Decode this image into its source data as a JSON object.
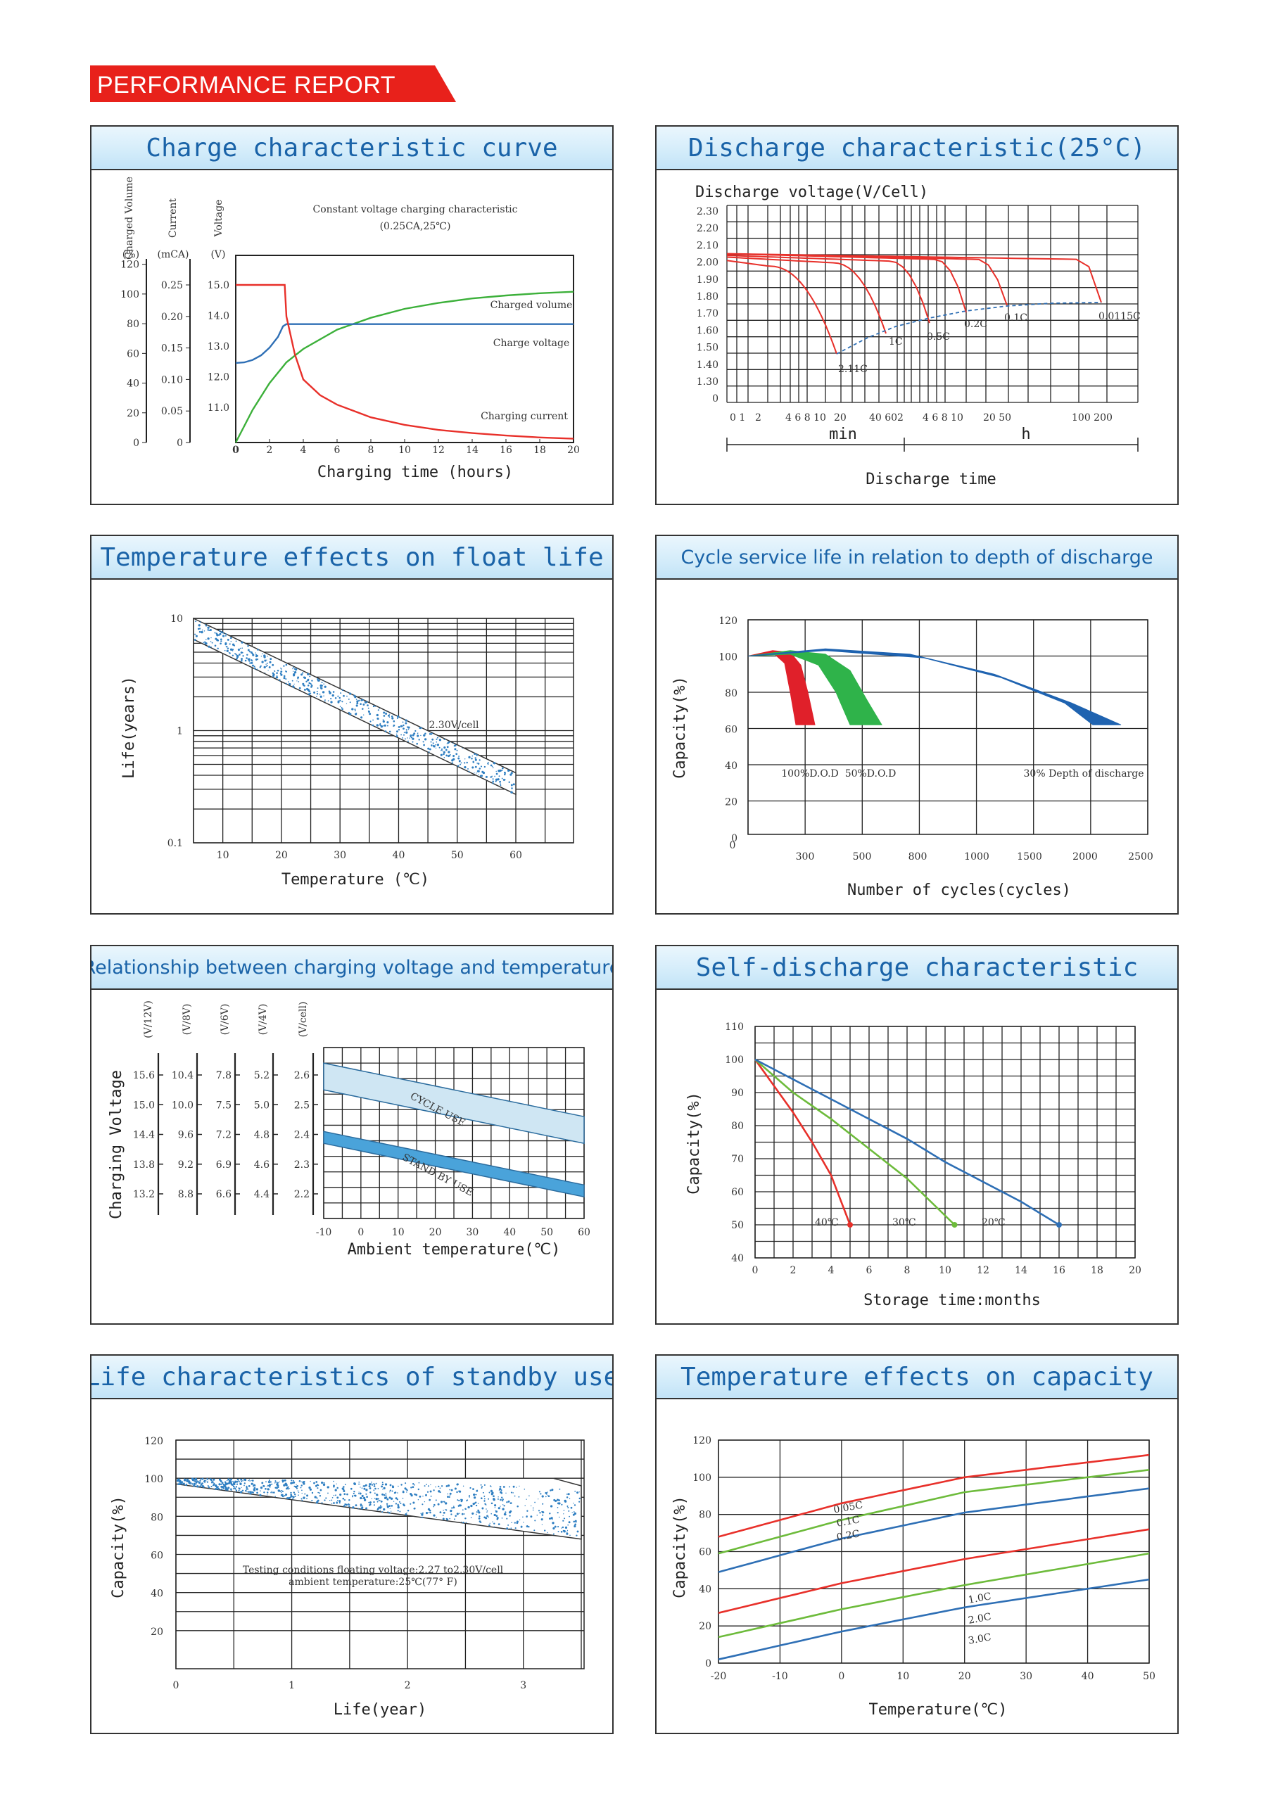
{
  "header": {
    "title": "PERFORMANCE REPORT",
    "color": "#e8211b"
  },
  "panels": [
    {
      "id": "charge",
      "title": "Charge characteristic curve"
    },
    {
      "id": "discharge",
      "title": "Discharge characteristic(25°C)"
    },
    {
      "id": "float",
      "title": "Temperature effects on float life"
    },
    {
      "id": "cycle",
      "title": "Cycle service life in relation to depth of discharge"
    },
    {
      "id": "cvt",
      "title": "Relationship between charging voltage and temperature"
    },
    {
      "id": "self",
      "title": "Self-discharge characteristic"
    },
    {
      "id": "standby",
      "title": "Life characteristics of standby use"
    },
    {
      "id": "tempcap",
      "title": "Temperature effects on capacity"
    }
  ],
  "chart_data": [
    {
      "id": "charge",
      "type": "line",
      "title": "Constant voltage charging characteristic",
      "subtitle": "(0.25CA,25℃)",
      "xlabel": "Charging time (hours)",
      "x_ticks": [
        "0",
        "2",
        "4",
        "6",
        "8",
        "10",
        "12",
        "14",
        "16",
        "18",
        "20"
      ],
      "axis_labels": {
        "charged_volume": "Charged Volume",
        "charged_volume_unit": "(%)",
        "current": "Current",
        "current_unit": "(mCA)",
        "voltage": "Voltage",
        "voltage_unit": "(V)"
      },
      "charged_volume_ticks": [
        "0",
        "20",
        "40",
        "60",
        "80",
        "100",
        "120"
      ],
      "current_ticks": [
        "0",
        "0.05",
        "0.10",
        "0.15",
        "0.20",
        "0.25"
      ],
      "voltage_ticks": [
        "11.0",
        "12.0",
        "13.0",
        "14.0",
        "15.0"
      ],
      "xlim": [
        0,
        20
      ],
      "series": [
        {
          "name": "Charged volume",
          "color": "#3cb03a",
          "axis": "charged_volume",
          "x": [
            0,
            1,
            2,
            3,
            4,
            6,
            8,
            10,
            12,
            14,
            16,
            18,
            20
          ],
          "y": [
            0,
            22,
            40,
            54,
            63,
            76,
            84,
            90,
            94,
            97,
            99,
            100.5,
            101.5
          ]
        },
        {
          "name": "Charge voltage",
          "color": "#2e6fb5",
          "axis": "voltage",
          "x": [
            0,
            0.5,
            1,
            1.5,
            2,
            2.5,
            2.8,
            3,
            4,
            6,
            8,
            10,
            12,
            14,
            16,
            18,
            20
          ],
          "y": [
            12.45,
            12.47,
            12.55,
            12.7,
            12.95,
            13.3,
            13.65,
            13.72,
            13.72,
            13.72,
            13.72,
            13.72,
            13.72,
            13.72,
            13.72,
            13.72,
            13.72
          ]
        },
        {
          "name": "Charging current",
          "color": "#e8302a",
          "axis": "current",
          "x": [
            0,
            1,
            2,
            2.9,
            3,
            3.5,
            4,
            5,
            6,
            8,
            10,
            12,
            14,
            16,
            18,
            20
          ],
          "y": [
            0.25,
            0.25,
            0.25,
            0.25,
            0.2,
            0.14,
            0.1,
            0.075,
            0.06,
            0.04,
            0.028,
            0.02,
            0.015,
            0.011,
            0.008,
            0.006
          ]
        }
      ]
    },
    {
      "id": "discharge",
      "type": "line",
      "ylabel": "Discharge voltage(V/Cell)",
      "xlabel": "Discharge time",
      "y_ticks": [
        "2.30",
        "2.20",
        "2.10",
        "2.00",
        "1.90",
        "1.80",
        "1.70",
        "1.60",
        "1.50",
        "1.40",
        "1.30",
        "0"
      ],
      "x_ticks_min": [
        "1",
        "2",
        "4",
        "6",
        "8",
        "10",
        "20",
        "40",
        "60"
      ],
      "x_ticks_h": [
        "2",
        "4",
        "6",
        "8",
        "10",
        "20",
        "50",
        "100",
        "200"
      ],
      "x_unit_min": "min",
      "x_unit_h": "h",
      "series": [
        {
          "name": "2.11C",
          "color": "#e8302a"
        },
        {
          "name": "1C",
          "color": "#e8302a"
        },
        {
          "name": "0.5C",
          "color": "#e8302a"
        },
        {
          "name": "0.2C",
          "color": "#e8302a"
        },
        {
          "name": "0.1C",
          "color": "#e8302a"
        },
        {
          "name": "0.0115C",
          "color": "#e8302a"
        }
      ]
    },
    {
      "id": "float",
      "type": "area",
      "ylabel": "Life(years)",
      "xlabel": "Temperature (℃)",
      "y_ticks": [
        "10",
        "1",
        "0.1"
      ],
      "x_ticks": [
        "10",
        "20",
        "30",
        "40",
        "50",
        "60"
      ],
      "yscale": "log",
      "ylim": [
        0.1,
        10
      ],
      "band_label": "2.30V/cell",
      "band": {
        "x": [
          5,
          60
        ],
        "upper": [
          10,
          0.42
        ],
        "lower": [
          6.5,
          0.27
        ]
      },
      "color": "#2f7fc2"
    },
    {
      "id": "cycle",
      "type": "line",
      "ylabel": "Capacity(%)",
      "xlabel": "Number of cycles(cycles)",
      "y_ticks": [
        "120",
        "100",
        "80",
        "60",
        "40",
        "20",
        "0"
      ],
      "x_ticks": [
        "300",
        "500",
        "800",
        "1000",
        "1500",
        "2000",
        "2500"
      ],
      "series": [
        {
          "name": "100%D.O.D",
          "color": "#e0202a"
        },
        {
          "name": "50%D.O.D",
          "color": "#2fb34a"
        },
        {
          "name": "30% Depth of discharge",
          "color": "#1f63b0"
        }
      ]
    },
    {
      "id": "cvt",
      "type": "area",
      "ylabel": "Charging Voltage",
      "xlabel": "Ambient temperature(℃)",
      "scales": [
        {
          "unit": "(V/12V)",
          "ticks": [
            "15.6",
            "15.0",
            "14.4",
            "13.8",
            "13.2"
          ]
        },
        {
          "unit": "(V/8V)",
          "ticks": [
            "10.4",
            "10.0",
            "9.6",
            "9.2",
            "8.8"
          ]
        },
        {
          "unit": "(V/6V)",
          "ticks": [
            "7.8",
            "7.5",
            "7.2",
            "6.9",
            "6.6"
          ]
        },
        {
          "unit": "(V/4V)",
          "ticks": [
            "5.2",
            "5.0",
            "4.8",
            "4.6",
            "4.4"
          ]
        },
        {
          "unit": "(V/cell)",
          "ticks": [
            "2.6",
            "2.5",
            "2.4",
            "2.3",
            "2.2"
          ]
        }
      ],
      "x_ticks": [
        "-10",
        "0",
        "10",
        "20",
        "30",
        "40",
        "50",
        "60"
      ],
      "xlim": [
        -10,
        60
      ],
      "ylim": [
        2.1,
        2.65
      ],
      "bands": [
        {
          "name": "CYCLE USE",
          "color": "#cfe6f3",
          "x": [
            -10,
            60
          ],
          "upper": [
            2.64,
            2.46
          ],
          "lower": [
            2.55,
            2.37
          ]
        },
        {
          "name": "STAND BY USE",
          "color": "#4aa3da",
          "x": [
            -10,
            60
          ],
          "upper": [
            2.41,
            2.23
          ],
          "lower": [
            2.37,
            2.19
          ]
        }
      ]
    },
    {
      "id": "self",
      "type": "line",
      "ylabel": "Capacity(%)",
      "xlabel": "Storage time:months",
      "y_ticks": [
        "110",
        "100",
        "90",
        "80",
        "70",
        "60",
        "50",
        "40"
      ],
      "x_ticks": [
        "0",
        "2",
        "4",
        "6",
        "8",
        "10",
        "12",
        "14",
        "16",
        "18",
        "20"
      ],
      "xlim": [
        0,
        20
      ],
      "ylim": [
        40,
        110
      ],
      "series": [
        {
          "name": "40℃",
          "color": "#e8302a",
          "x": [
            0,
            0.5,
            1,
            2,
            3,
            4,
            5
          ],
          "y": [
            100,
            96,
            92,
            84,
            75,
            65,
            50
          ]
        },
        {
          "name": "30℃",
          "color": "#6dbb3b",
          "x": [
            0,
            1,
            2,
            4,
            6,
            8,
            10.5
          ],
          "y": [
            100,
            95,
            90,
            82,
            73,
            64,
            50
          ]
        },
        {
          "name": "20℃",
          "color": "#2e6fb5",
          "x": [
            0,
            2,
            4,
            6,
            8,
            10,
            12,
            14,
            16
          ],
          "y": [
            100,
            94,
            88,
            82,
            76,
            69,
            63,
            57,
            50
          ]
        }
      ]
    },
    {
      "id": "standby",
      "type": "area",
      "ylabel": "Capacity(%)",
      "xlabel": "Life(year)",
      "y_ticks": [
        "120",
        "100",
        "80",
        "60",
        "40",
        "20"
      ],
      "x_ticks": [
        "0",
        "1",
        "2",
        "3"
      ],
      "xlim": [
        0,
        3.5
      ],
      "ylim": [
        0,
        120
      ],
      "band": {
        "x": [
          0,
          3.5
        ],
        "upper": [
          100,
          96
        ],
        "lower": [
          97,
          68
        ]
      },
      "note_line1": "Testing conditions floating voltage:2.27 to2.30V/cell",
      "note_line2": "ambient temperature:25℃(77° F)"
    },
    {
      "id": "tempcap",
      "type": "line",
      "ylabel": "Capacity(%)",
      "xlabel": "Temperature(℃)",
      "y_ticks": [
        "120",
        "100",
        "80",
        "60",
        "40",
        "20",
        "0"
      ],
      "x_ticks": [
        "-20",
        "-10",
        "0",
        "10",
        "20",
        "30",
        "40",
        "50"
      ],
      "xlim": [
        -20,
        50
      ],
      "ylim": [
        0,
        120
      ],
      "series": [
        {
          "name": "0.05C",
          "color": "#e8302a",
          "x": [
            -20,
            0,
            20,
            50
          ],
          "y": [
            68,
            86,
            100,
            112
          ]
        },
        {
          "name": "0.1C",
          "color": "#6dbb3b",
          "x": [
            -20,
            0,
            20,
            50
          ],
          "y": [
            59,
            77,
            92,
            104
          ]
        },
        {
          "name": "0.2C",
          "color": "#2e6fb5",
          "x": [
            -20,
            0,
            20,
            50
          ],
          "y": [
            49,
            67,
            81,
            94
          ]
        },
        {
          "name": "1.0C",
          "color": "#e8302a",
          "x": [
            -20,
            0,
            20,
            50
          ],
          "y": [
            27,
            43,
            56,
            72
          ]
        },
        {
          "name": "2.0C",
          "color": "#6dbb3b",
          "x": [
            -20,
            0,
            20,
            50
          ],
          "y": [
            14,
            29,
            42,
            59
          ]
        },
        {
          "name": "3.0C",
          "color": "#2e6fb5",
          "x": [
            -20,
            0,
            20,
            50
          ],
          "y": [
            2,
            17,
            30,
            45
          ]
        }
      ]
    }
  ]
}
